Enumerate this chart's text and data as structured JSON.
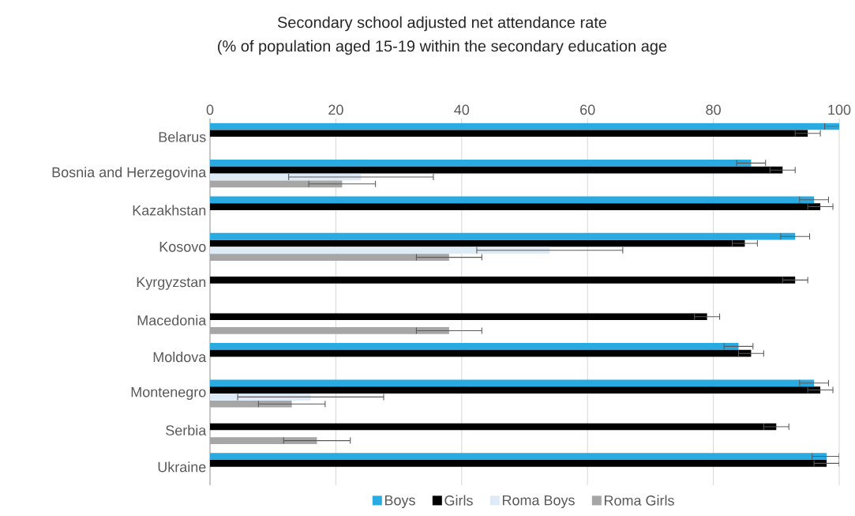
{
  "chart_data": {
    "type": "bar",
    "orientation": "horizontal",
    "title": "Secondary school adjusted net attendance rate",
    "subtitle": "(% of population aged 15-19 within the secondary education age",
    "categories": [
      "Belarus",
      "Bosnia and Herzegovina",
      "Kazakhstan",
      "Kosovo",
      "Kyrgyzstan",
      "Macedonia",
      "Moldova",
      "Montenegro",
      "Serbia",
      "Ukraine"
    ],
    "series": [
      {
        "name": "Boys",
        "color": "#29abe2",
        "values": [
          100,
          86,
          96,
          93,
          null,
          null,
          84,
          96,
          null,
          98
        ],
        "errors": [
          [
            97.7,
            100
          ],
          2.3,
          2.3,
          2.3,
          null,
          null,
          2.3,
          2.3,
          null,
          [
            95.7,
            100
          ]
        ]
      },
      {
        "name": "Girls",
        "color": "#000000",
        "values": [
          95,
          91,
          97,
          85,
          93,
          79,
          86,
          97,
          90,
          98
        ],
        "errors": [
          2,
          2,
          2,
          2,
          2,
          2,
          2,
          2,
          2,
          [
            96,
            100
          ]
        ]
      },
      {
        "name": "Roma Boys",
        "color": "#deebf7",
        "values": [
          null,
          24,
          null,
          54,
          null,
          null,
          null,
          16,
          null,
          null
        ],
        "errors": [
          null,
          11.5,
          null,
          11.6,
          null,
          null,
          null,
          11.6,
          null,
          null
        ]
      },
      {
        "name": "Roma Girls",
        "color": "#a6a6a6",
        "values": [
          null,
          21,
          null,
          38,
          null,
          38,
          null,
          13,
          17,
          null
        ],
        "errors": [
          null,
          5.3,
          null,
          5.2,
          null,
          5.2,
          null,
          5.3,
          5.3,
          null
        ]
      }
    ],
    "xlim": [
      0,
      100
    ],
    "xticks": [
      0,
      20,
      40,
      60,
      80,
      100
    ],
    "grid": "x",
    "legend": "bottom"
  }
}
